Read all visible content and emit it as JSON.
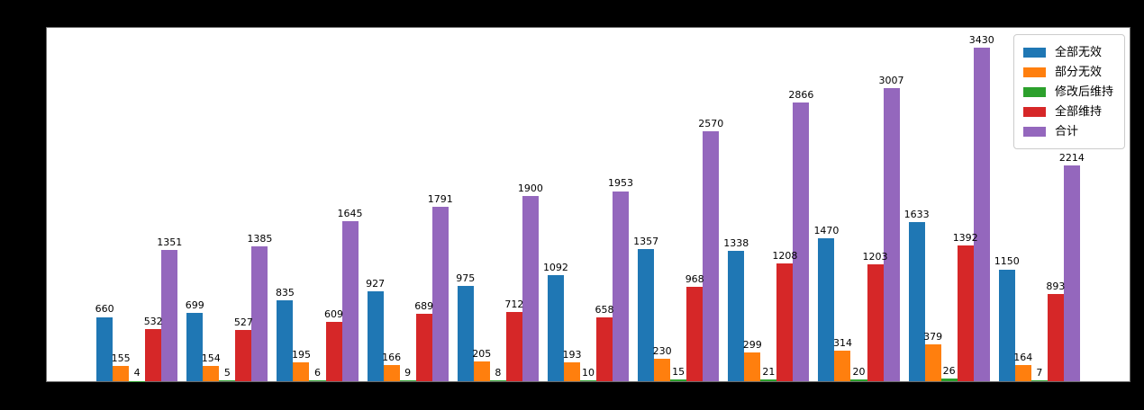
{
  "figure": {
    "background_color": "#000000",
    "plot_background_color": "#ffffff",
    "plot_border_color": "#6e6e6e",
    "bar_label_color": "#000000"
  },
  "chart_data": {
    "type": "bar",
    "title": "",
    "xlabel": "",
    "ylabel": "",
    "x_tick_labels": [],
    "y_tick_labels": [],
    "num_groups": 11,
    "bar_width": 0.18,
    "xlim": [
      -1,
      11
    ],
    "ylim": [
      0,
      3630
    ],
    "grid": false,
    "bar_value_labels": true,
    "legend_position": "upper-right",
    "series": [
      {
        "name": "全部无效",
        "color": "#1f77b4",
        "values": [
          660,
          699,
          835,
          927,
          975,
          1092,
          1357,
          1338,
          1470,
          1633,
          1150
        ]
      },
      {
        "name": "部分无效",
        "color": "#ff7f0e",
        "values": [
          155,
          154,
          195,
          166,
          205,
          193,
          230,
          299,
          314,
          379,
          164
        ]
      },
      {
        "name": "修改后维持",
        "color": "#2ca02c",
        "values": [
          4,
          5,
          6,
          9,
          8,
          10,
          15,
          21,
          20,
          26,
          7
        ]
      },
      {
        "name": "全部维持",
        "color": "#d62728",
        "values": [
          532,
          527,
          609,
          689,
          712,
          658,
          968,
          1208,
          1203,
          1392,
          893
        ]
      },
      {
        "name": "合计",
        "color": "#9467bd",
        "values": [
          1351,
          1385,
          1645,
          1791,
          1900,
          1953,
          2570,
          2866,
          3007,
          3430,
          2214
        ]
      }
    ]
  }
}
